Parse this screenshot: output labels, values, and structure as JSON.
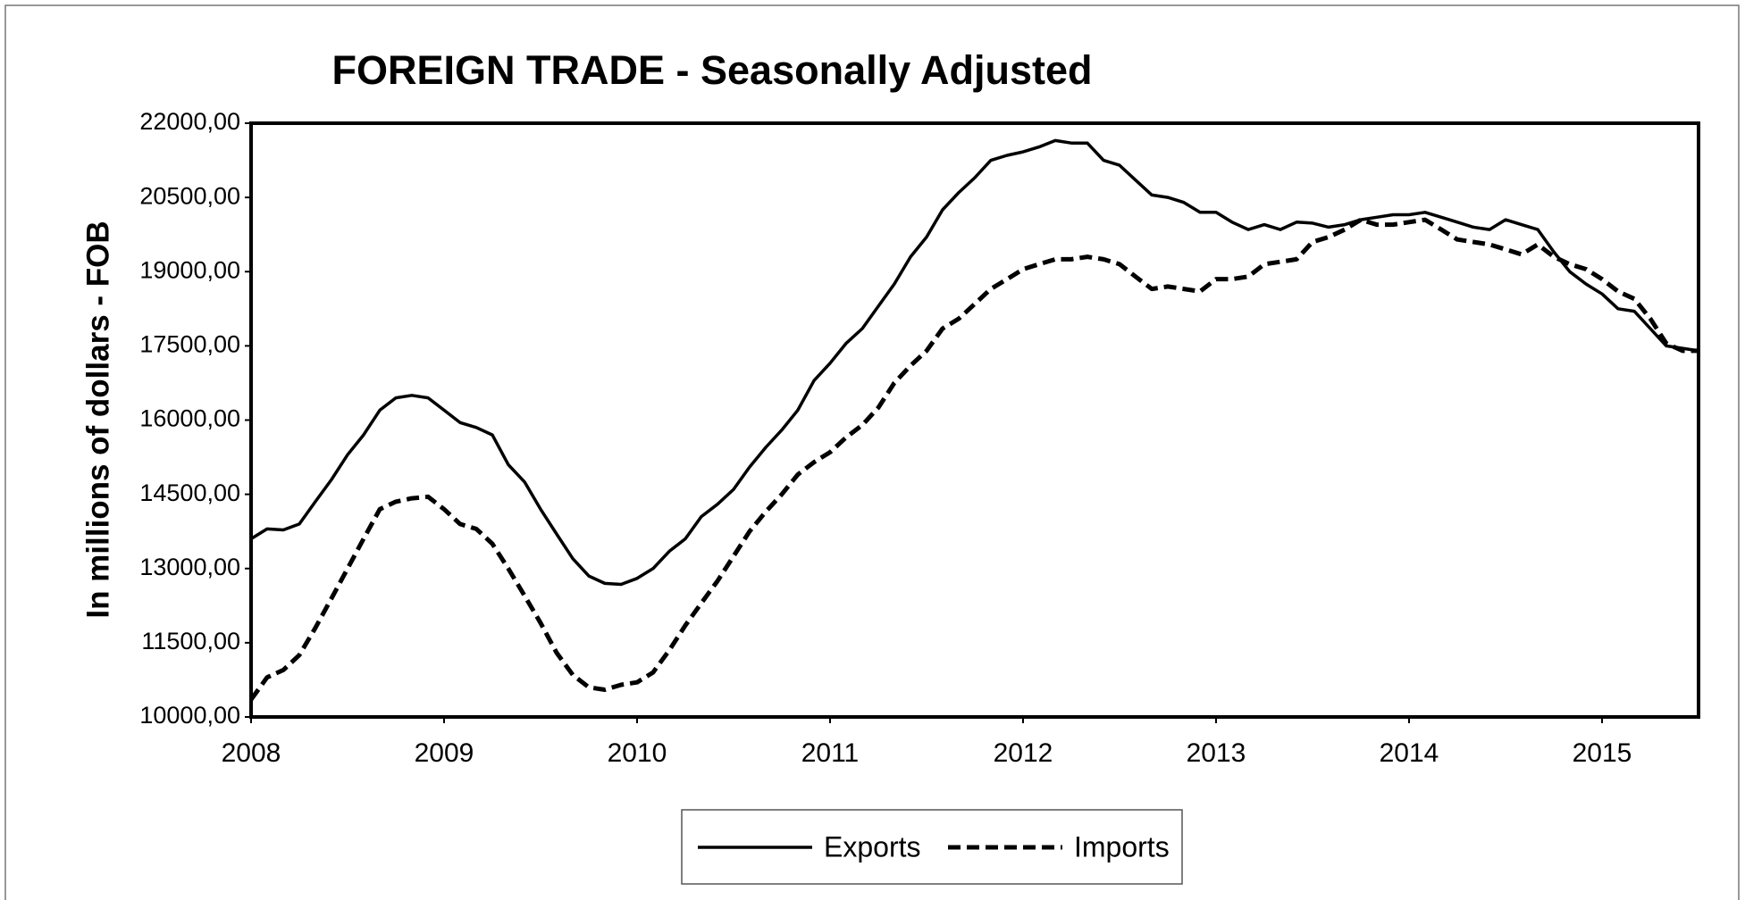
{
  "chart_data": {
    "type": "line",
    "title": "FOREIGN TRADE - Seasonally Adjusted",
    "y_label": "In millions of dollars - FOB",
    "x": [
      2008,
      2008.083,
      2008.167,
      2008.25,
      2008.333,
      2008.417,
      2008.5,
      2008.583,
      2008.667,
      2008.75,
      2008.833,
      2008.917,
      2009,
      2009.083,
      2009.167,
      2009.25,
      2009.333,
      2009.417,
      2009.5,
      2009.583,
      2009.667,
      2009.75,
      2009.833,
      2009.917,
      2010,
      2010.083,
      2010.167,
      2010.25,
      2010.333,
      2010.417,
      2010.5,
      2010.583,
      2010.667,
      2010.75,
      2010.833,
      2010.917,
      2011,
      2011.083,
      2011.167,
      2011.25,
      2011.333,
      2011.417,
      2011.5,
      2011.583,
      2011.667,
      2011.75,
      2011.833,
      2011.917,
      2012,
      2012.083,
      2012.167,
      2012.25,
      2012.333,
      2012.417,
      2012.5,
      2012.583,
      2012.667,
      2012.75,
      2012.833,
      2012.917,
      2013,
      2013.083,
      2013.167,
      2013.25,
      2013.333,
      2013.417,
      2013.5,
      2013.583,
      2013.667,
      2013.75,
      2013.833,
      2013.917,
      2014,
      2014.083,
      2014.167,
      2014.25,
      2014.333,
      2014.417,
      2014.5,
      2014.583,
      2014.667,
      2014.75,
      2014.833,
      2014.917,
      2015,
      2015.083,
      2015.167,
      2015.25,
      2015.333,
      2015.417,
      2015.5
    ],
    "series": [
      {
        "name": "Exports",
        "color": "#000000",
        "line_style": "solid",
        "values": [
          13600,
          13800,
          13780,
          13900,
          14350,
          14800,
          15300,
          15700,
          16200,
          16450,
          16500,
          16450,
          16200,
          15950,
          15850,
          15700,
          15100,
          14750,
          14200,
          13700,
          13200,
          12850,
          12700,
          12680,
          12800,
          13000,
          13350,
          13600,
          14050,
          14300,
          14600,
          15050,
          15450,
          15800,
          16200,
          16800,
          17150,
          17550,
          17850,
          18300,
          18750,
          19300,
          19700,
          20250,
          20600,
          20900,
          21250,
          21350,
          21420,
          21520,
          21650,
          21600,
          21600,
          21250,
          21150,
          20850,
          20550,
          20500,
          20400,
          20200,
          20200,
          20000,
          19850,
          19950,
          19850,
          20000,
          19980,
          19900,
          19950,
          20050,
          20100,
          20150,
          20150,
          20200,
          20100,
          20000,
          19900,
          19850,
          20050,
          19950,
          19850,
          19400,
          19000,
          18750,
          18550,
          18250,
          18200,
          17850,
          17500,
          17450,
          17400
        ]
      },
      {
        "name": "Imports",
        "color": "#000000",
        "line_style": "dashed",
        "values": [
          10350,
          10800,
          10950,
          11250,
          11800,
          12400,
          13000,
          13600,
          14200,
          14350,
          14420,
          14450,
          14200,
          13900,
          13800,
          13500,
          13000,
          12450,
          11900,
          11300,
          10850,
          10600,
          10550,
          10650,
          10700,
          10900,
          11350,
          11850,
          12300,
          12750,
          13250,
          13750,
          14150,
          14500,
          14900,
          15150,
          15350,
          15650,
          15900,
          16250,
          16750,
          17100,
          17400,
          17850,
          18050,
          18350,
          18650,
          18850,
          19050,
          19150,
          19250,
          19250,
          19300,
          19250,
          19150,
          18900,
          18650,
          18700,
          18650,
          18600,
          18850,
          18850,
          18900,
          19150,
          19200,
          19250,
          19600,
          19700,
          19850,
          20050,
          19950,
          19950,
          20000,
          20050,
          19850,
          19650,
          19600,
          19550,
          19450,
          19350,
          19550,
          19300,
          19150,
          19050,
          18850,
          18600,
          18450,
          18050,
          17550,
          17400,
          17400
        ]
      }
    ],
    "xlim": [
      2008,
      2015.5
    ],
    "xticks": [
      2008,
      2009,
      2010,
      2011,
      2012,
      2013,
      2014,
      2015
    ],
    "ylim": [
      10000,
      22000
    ],
    "yticks": [
      {
        "value": 10000,
        "label": "10000,00"
      },
      {
        "value": 11500,
        "label": "11500,00"
      },
      {
        "value": 13000,
        "label": "13000,00"
      },
      {
        "value": 14500,
        "label": "14500,00"
      },
      {
        "value": 16000,
        "label": "16000,00"
      },
      {
        "value": 17500,
        "label": "17500,00"
      },
      {
        "value": 19000,
        "label": "19000,00"
      },
      {
        "value": 20500,
        "label": "20500,00"
      },
      {
        "value": 22000,
        "label": "22000,00"
      }
    ],
    "grid": false,
    "legend": "bottom"
  }
}
